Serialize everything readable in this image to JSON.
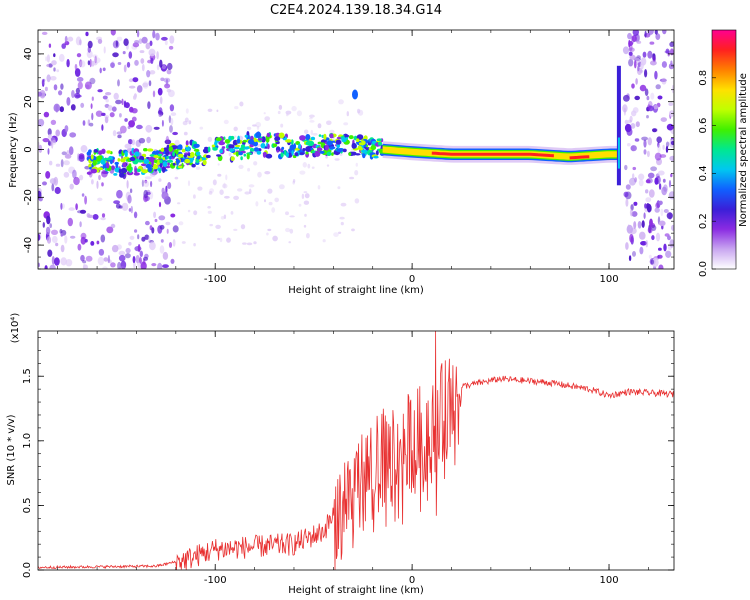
{
  "title": "C2E4.2024.139.18.34.G14",
  "chart_data": [
    {
      "type": "heatmap",
      "xlabel": "Height of straight line (km)",
      "ylabel": "Frequency (Hz)",
      "xlim": [
        -190,
        133
      ],
      "ylim": [
        -50,
        50
      ],
      "x_ticks": [
        -100,
        0,
        100
      ],
      "y_ticks": [
        -40,
        -20,
        0,
        20,
        40
      ],
      "colorbar": {
        "label": "Normalized spectral amplitude",
        "range": [
          0,
          1
        ],
        "ticks": [
          "0.0",
          "0.2",
          "0.4",
          "0.6",
          "0.8"
        ],
        "colors": [
          "#ffffff",
          "#c9a6f0",
          "#8a2be2",
          "#3a1fd8",
          "#1060ff",
          "#00c8f0",
          "#00e890",
          "#40f000",
          "#c0ff00",
          "#ffe000",
          "#ff8000",
          "#ff2020",
          "#ff0090"
        ]
      },
      "echo_trace": [
        {
          "x": -165,
          "y": -5
        },
        {
          "x": -150,
          "y": -6
        },
        {
          "x": -135,
          "y": -5
        },
        {
          "x": -120,
          "y": -3
        },
        {
          "x": -105,
          "y": -1
        },
        {
          "x": -90,
          "y": 1
        },
        {
          "x": -75,
          "y": 2
        },
        {
          "x": -60,
          "y": 1
        },
        {
          "x": -45,
          "y": 2
        },
        {
          "x": -30,
          "y": 2
        },
        {
          "x": -15,
          "y": 0
        },
        {
          "x": 0,
          "y": -1
        },
        {
          "x": 20,
          "y": -2
        },
        {
          "x": 40,
          "y": -2
        },
        {
          "x": 60,
          "y": -2
        },
        {
          "x": 80,
          "y": -3
        },
        {
          "x": 100,
          "y": -2
        }
      ],
      "noise_regions": [
        [
          -190,
          -120
        ],
        [
          108,
          133
        ]
      ]
    },
    {
      "type": "line",
      "xlabel": "Height of straight line (km)",
      "ylabel": "SNR (10 * v/v)",
      "y_multiplier": "(x10⁴)",
      "xlim": [
        -190,
        133
      ],
      "ylim": [
        0,
        1.85
      ],
      "x_ticks": [
        -100,
        0,
        100
      ],
      "y_ticks": [
        "0.0",
        "0.5",
        "1.0",
        "1.5"
      ],
      "color": "#e83030",
      "series_envelope": [
        {
          "x": -190,
          "y": 0.02
        },
        {
          "x": -130,
          "y": 0.03
        },
        {
          "x": -115,
          "y": 0.08
        },
        {
          "x": -100,
          "y": 0.16
        },
        {
          "x": -80,
          "y": 0.18
        },
        {
          "x": -60,
          "y": 0.2
        },
        {
          "x": -45,
          "y": 0.3
        },
        {
          "x": -35,
          "y": 0.55
        },
        {
          "x": -25,
          "y": 0.7
        },
        {
          "x": -15,
          "y": 0.85
        },
        {
          "x": -5,
          "y": 0.95
        },
        {
          "x": 5,
          "y": 1.05
        },
        {
          "x": 15,
          "y": 1.2
        },
        {
          "x": 25,
          "y": 1.42
        },
        {
          "x": 45,
          "y": 1.48
        },
        {
          "x": 70,
          "y": 1.45
        },
        {
          "x": 90,
          "y": 1.4
        },
        {
          "x": 100,
          "y": 1.35
        },
        {
          "x": 110,
          "y": 1.38
        },
        {
          "x": 133,
          "y": 1.36
        }
      ],
      "spikes": [
        {
          "x": 12,
          "y": 1.85
        },
        {
          "x": 12,
          "y": 0.42
        }
      ]
    }
  ]
}
